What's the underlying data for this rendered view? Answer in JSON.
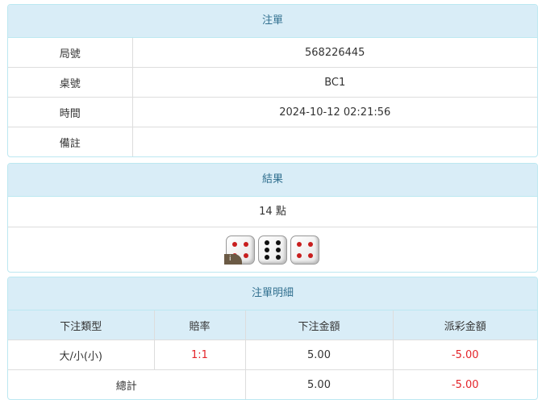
{
  "bet": {
    "title": "注單",
    "rows": [
      {
        "label": "局號",
        "value": "568226445"
      },
      {
        "label": "桌號",
        "value": "BC1"
      },
      {
        "label": "時間",
        "value": "2024-10-12 02:21:56"
      },
      {
        "label": "備註",
        "value": ""
      }
    ]
  },
  "result": {
    "title": "結果",
    "points": "14 點",
    "dice": [
      4,
      6,
      4
    ],
    "badge": "i"
  },
  "detail": {
    "title": "注單明細",
    "headers": [
      "下注類型",
      "賠率",
      "下注金額",
      "派彩金額"
    ],
    "row": {
      "type": "大/小(小)",
      "odds": "1:1",
      "amount": "5.00",
      "payout": "-5.00"
    },
    "total": {
      "label": "總計",
      "amount": "5.00",
      "payout": "-5.00"
    }
  },
  "colors": {
    "header_bg": "#d9edf7",
    "header_text": "#31708f",
    "negative": "#e4242a",
    "dot_red": "#c81e1e",
    "dot_black": "#111111"
  }
}
